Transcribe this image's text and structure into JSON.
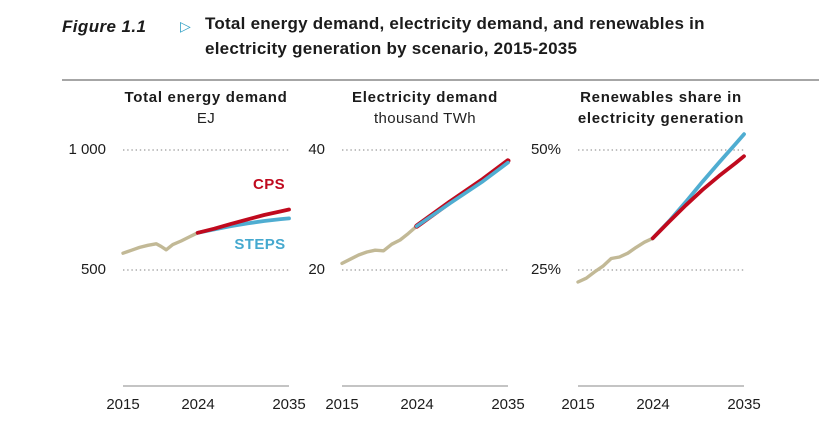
{
  "figure": {
    "label": "Figure 1.1",
    "marker_icon": "▷",
    "accent_color": "#2f9fc4",
    "title_line1": "Total energy demand, electricity demand, and renewables in",
    "title_line2": "electricity generation by scenario, 2015-2035"
  },
  "colors": {
    "history": "#c2b996",
    "cps": "#c00a1e",
    "steps": "#4fadd1",
    "gridline": "#ababab",
    "axis": "#b1b1b1"
  },
  "chart_data": [
    {
      "type": "line",
      "title_lines": [
        "Total energy demand"
      ],
      "subtitle": "EJ",
      "xlim": [
        2015,
        2035
      ],
      "x_ticks": [
        "2015",
        "2024",
        "2035"
      ],
      "grid": "dotted-horizontal",
      "gridlines": [
        {
          "label": "1 000",
          "value": 1000
        },
        {
          "label": "500",
          "value": 500
        }
      ],
      "series": [
        {
          "name": "History",
          "color": "#c2b996",
          "width": 3.4,
          "points": [
            [
              2015,
              570
            ],
            [
              2016,
              582
            ],
            [
              2017,
              594
            ],
            [
              2018,
              603
            ],
            [
              2019,
              609
            ],
            [
              2019.6,
              598
            ],
            [
              2020.2,
              584
            ],
            [
              2021,
              606
            ],
            [
              2022,
              621
            ],
            [
              2023,
              638
            ],
            [
              2024,
              655
            ]
          ]
        },
        {
          "name": "STEPS",
          "color": "#4fadd1",
          "width": 3.8,
          "points": [
            [
              2024,
              655
            ],
            [
              2026,
              669
            ],
            [
              2028,
              683
            ],
            [
              2030,
              694
            ],
            [
              2032,
              704
            ],
            [
              2034,
              712
            ],
            [
              2035,
              715
            ]
          ]
        },
        {
          "name": "CPS",
          "color": "#c00a1e",
          "width": 3.8,
          "points": [
            [
              2024,
              655
            ],
            [
              2026,
              672
            ],
            [
              2028,
              692
            ],
            [
              2030,
              711
            ],
            [
              2032,
              729
            ],
            [
              2034,
              744
            ],
            [
              2035,
              752
            ]
          ]
        }
      ],
      "annotations": [
        {
          "text": "CPS",
          "color": "#c00a1e"
        },
        {
          "text": "STEPS",
          "color": "#45a9cf"
        }
      ]
    },
    {
      "type": "line",
      "title_lines": [
        "Electricity demand"
      ],
      "subtitle": "thousand TWh",
      "xlim": [
        2015,
        2035
      ],
      "x_ticks": [
        "2015",
        "2024",
        "2035"
      ],
      "grid": "dotted-horizontal",
      "gridlines": [
        {
          "label": "40",
          "value": 40
        },
        {
          "label": "20",
          "value": 20
        }
      ],
      "series": [
        {
          "name": "History",
          "color": "#c2b996",
          "width": 3.4,
          "points": [
            [
              2015,
              21.1
            ],
            [
              2016,
              21.8
            ],
            [
              2017,
              22.5
            ],
            [
              2018,
              23.0
            ],
            [
              2019,
              23.3
            ],
            [
              2020,
              23.2
            ],
            [
              2021,
              24.3
            ],
            [
              2022,
              25.0
            ],
            [
              2023,
              26.1
            ],
            [
              2024,
              27.3
            ]
          ]
        },
        {
          "name": "CPS",
          "color": "#c00a1e",
          "width": 5.0,
          "points": [
            [
              2024,
              27.3
            ],
            [
              2028,
              31.3
            ],
            [
              2032,
              35.1
            ],
            [
              2035,
              38.2
            ]
          ]
        },
        {
          "name": "STEPS",
          "color": "#4fadd1",
          "width": 3.6,
          "points": [
            [
              2024,
              27.3
            ],
            [
              2028,
              31.1
            ],
            [
              2032,
              34.8
            ],
            [
              2035,
              37.9
            ]
          ]
        }
      ],
      "annotations": []
    },
    {
      "type": "line",
      "title_lines": [
        "Renewables share in",
        "electricity generation"
      ],
      "subtitle": "",
      "xlim": [
        2015,
        2035
      ],
      "x_ticks": [
        "2015",
        "2024",
        "2035"
      ],
      "grid": "dotted-horizontal",
      "gridlines": [
        {
          "label": "50%",
          "value": 50
        },
        {
          "label": "25%",
          "value": 25
        }
      ],
      "series": [
        {
          "name": "History",
          "color": "#c2b996",
          "width": 3.4,
          "points": [
            [
              2015,
              22.5
            ],
            [
              2016,
              23.3
            ],
            [
              2017,
              24.6
            ],
            [
              2018,
              25.8
            ],
            [
              2019,
              27.4
            ],
            [
              2020,
              27.7
            ],
            [
              2021,
              28.5
            ],
            [
              2022,
              29.7
            ],
            [
              2023,
              30.8
            ],
            [
              2024,
              31.6
            ]
          ]
        },
        {
          "name": "STEPS",
          "color": "#4fadd1",
          "width": 3.8,
          "points": [
            [
              2024,
              31.6
            ],
            [
              2026,
              35.2
            ],
            [
              2028,
              39.2
            ],
            [
              2030,
              43.4
            ],
            [
              2032,
              47.4
            ],
            [
              2034,
              51.3
            ],
            [
              2035,
              53.3
            ]
          ]
        },
        {
          "name": "CPS",
          "color": "#c00a1e",
          "width": 3.8,
          "points": [
            [
              2024,
              31.6
            ],
            [
              2026,
              35.1
            ],
            [
              2028,
              38.5
            ],
            [
              2030,
              41.7
            ],
            [
              2032,
              44.6
            ],
            [
              2034,
              47.3
            ],
            [
              2035,
              48.7
            ]
          ]
        }
      ],
      "annotations": []
    }
  ]
}
